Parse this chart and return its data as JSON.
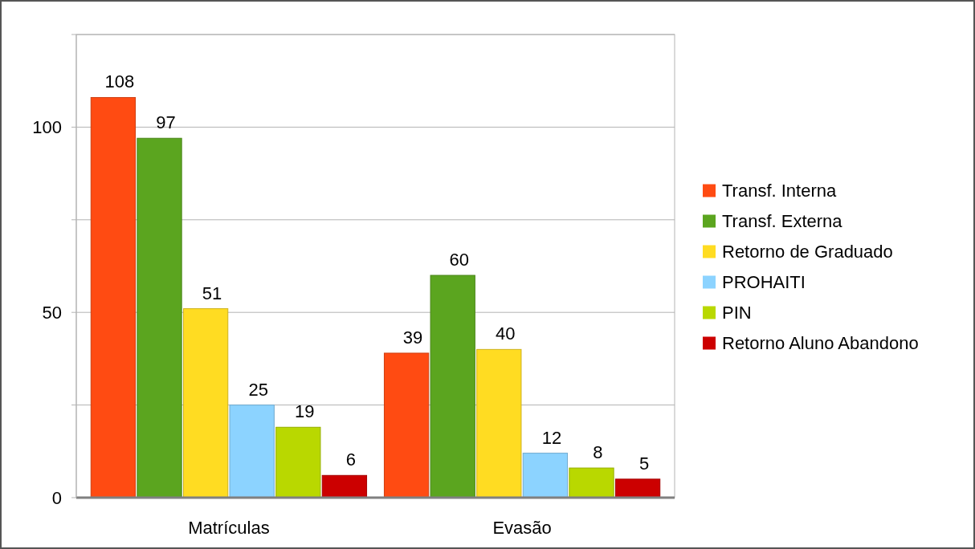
{
  "chart_data": {
    "type": "bar",
    "categories": [
      "Matrículas",
      "Evasão"
    ],
    "series": [
      {
        "name": "Transf. Interna",
        "color": "#ff4b12",
        "values": [
          108,
          39
        ]
      },
      {
        "name": "Transf. Externa",
        "color": "#5ba51f",
        "values": [
          97,
          60
        ]
      },
      {
        "name": "Retorno de Graduado",
        "color": "#ffdc22",
        "values": [
          51,
          40
        ]
      },
      {
        "name": "PROHAITI",
        "color": "#8cd3ff",
        "values": [
          25,
          12
        ]
      },
      {
        "name": "PIN",
        "color": "#b9d800",
        "values": [
          19,
          8
        ]
      },
      {
        "name": "Retorno Aluno Abandono",
        "color": "#cc0000",
        "values": [
          6,
          5
        ]
      }
    ],
    "ylim": [
      0,
      125
    ],
    "yticks": [
      0,
      {
        "value": 25,
        "label": null
      },
      50,
      {
        "value": 75,
        "label": null
      },
      100,
      {
        "value": 125,
        "label": null
      }
    ],
    "grid": "y",
    "legend": "right",
    "data_labels": true
  }
}
